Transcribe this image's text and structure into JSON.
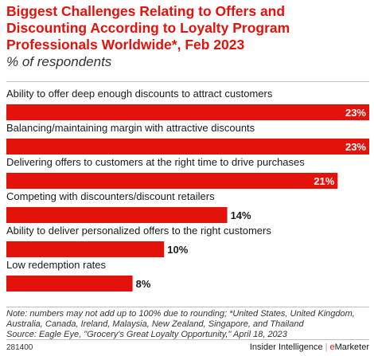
{
  "title": "Biggest Challenges Relating to Offers and Discounting According to Loyalty Program Professionals Worldwide*, Feb 2023",
  "subtitle": "% of respondents",
  "note": "Note: numbers may not add up to 100% due to rounding; *United States, United Kingdom, Australia, Canada, Ireland, Malaysia, New Zealand, Singapore, and Thailand",
  "source": "Source: Eagle Eye, \"Grocery's Great Loyalty Opportunity,\" April 18, 2023",
  "footer": {
    "id": "281400",
    "brand_primary": "Insider Intelligence",
    "brand_separator": "|",
    "brand_e": "e",
    "brand_rest": "Marketer"
  },
  "colors": {
    "bar": "#e3120b",
    "title": "#e3120b"
  },
  "chart_data": {
    "type": "bar",
    "orientation": "horizontal",
    "categories": [
      "Ability to offer deep enough discounts to attract customers",
      "Balancing/maintaining margin with attractive discounts",
      "Delivering offers to customers at the right time to drive purchases",
      "Competing with discounters/discount retailers",
      "Ability to deliver personalized offers to the right customers",
      "Low redemption rates"
    ],
    "values": [
      23,
      23,
      21,
      14,
      10,
      8
    ],
    "value_labels": [
      "23%",
      "23%",
      "21%",
      "14%",
      "10%",
      "8%"
    ],
    "xlim": [
      0,
      23
    ],
    "grid": false
  }
}
